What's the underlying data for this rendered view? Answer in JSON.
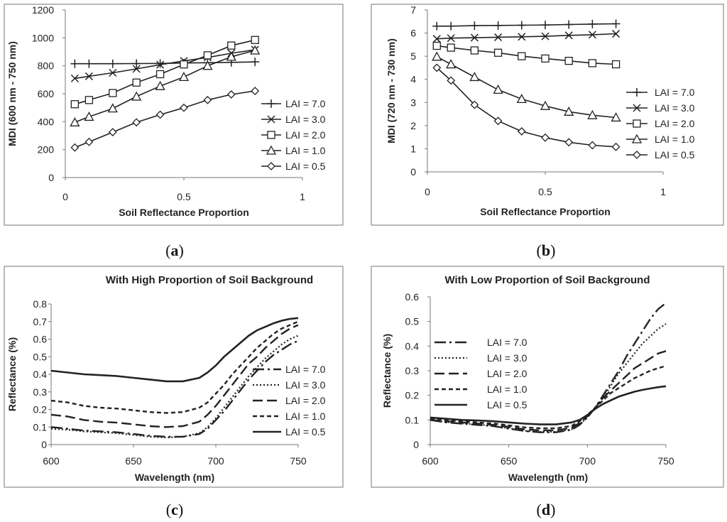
{
  "chart_data": [
    {
      "id": "a",
      "type": "line",
      "caption_letter": "a",
      "xlabel": "Soil Reflectance Proportion",
      "ylabel": "MDI (600 nm - 750 nm)",
      "xlim": [
        0,
        1
      ],
      "ylim": [
        0,
        1200
      ],
      "xticks": [
        0,
        0.5,
        1
      ],
      "xticklabels": [
        "0",
        "0.5",
        "1"
      ],
      "yticks": [
        0,
        200,
        400,
        600,
        800,
        1000,
        1200
      ],
      "legend_position": "right",
      "x": [
        0.04,
        0.1,
        0.2,
        0.3,
        0.4,
        0.5,
        0.6,
        0.7,
        0.8
      ],
      "series": [
        {
          "name": "LAI = 7.0",
          "marker": "plus",
          "values": [
            815,
            815,
            815,
            816,
            817,
            820,
            822,
            825,
            828
          ]
        },
        {
          "name": "LAI = 3.0",
          "marker": "x",
          "values": [
            710,
            725,
            750,
            778,
            808,
            835,
            860,
            890,
            915
          ]
        },
        {
          "name": "LAI = 2.0",
          "marker": "square",
          "values": [
            525,
            555,
            605,
            680,
            740,
            810,
            875,
            945,
            985
          ]
        },
        {
          "name": "LAI = 1.0",
          "marker": "triangle",
          "values": [
            395,
            435,
            495,
            580,
            655,
            720,
            800,
            865,
            910
          ]
        },
        {
          "name": "LAI = 0.5",
          "marker": "diamond",
          "values": [
            215,
            255,
            325,
            395,
            450,
            500,
            555,
            595,
            620
          ]
        }
      ]
    },
    {
      "id": "b",
      "type": "line",
      "caption_letter": "b",
      "xlabel": "Soil Reflectance Proportion",
      "ylabel": "MDI (720 nm - 730 nm)",
      "xlim": [
        0,
        1
      ],
      "ylim": [
        0,
        7
      ],
      "xticks": [
        0,
        0.5,
        1
      ],
      "xticklabels": [
        "0",
        "0.5",
        "1"
      ],
      "yticks": [
        0,
        1,
        2,
        3,
        4,
        5,
        6,
        7
      ],
      "legend_position": "right",
      "x": [
        0.04,
        0.1,
        0.2,
        0.3,
        0.4,
        0.5,
        0.6,
        0.7,
        0.8
      ],
      "series": [
        {
          "name": "LAI = 7.0",
          "marker": "plus",
          "values": [
            6.3,
            6.3,
            6.32,
            6.33,
            6.34,
            6.35,
            6.37,
            6.39,
            6.4
          ]
        },
        {
          "name": "LAI = 3.0",
          "marker": "x",
          "values": [
            5.75,
            5.78,
            5.8,
            5.82,
            5.84,
            5.86,
            5.9,
            5.93,
            5.97
          ]
        },
        {
          "name": "LAI = 2.0",
          "marker": "square",
          "values": [
            5.45,
            5.37,
            5.25,
            5.15,
            5.0,
            4.9,
            4.8,
            4.7,
            4.65
          ]
        },
        {
          "name": "LAI = 1.0",
          "marker": "triangle",
          "values": [
            4.98,
            4.65,
            4.1,
            3.55,
            3.15,
            2.85,
            2.6,
            2.45,
            2.35
          ]
        },
        {
          "name": "LAI = 0.5",
          "marker": "diamond",
          "values": [
            4.5,
            3.95,
            2.9,
            2.2,
            1.75,
            1.48,
            1.28,
            1.15,
            1.08
          ]
        }
      ]
    },
    {
      "id": "c",
      "type": "line",
      "caption_letter": "c",
      "title": "With High Proportion of Soil Background",
      "xlabel": "Wavelength (nm)",
      "ylabel": "Reflectance (%)",
      "xlim": [
        600,
        750
      ],
      "ylim": [
        0,
        0.8
      ],
      "xticks": [
        600,
        650,
        700,
        750
      ],
      "yticks": [
        0,
        0.1,
        0.2,
        0.3,
        0.4,
        0.5,
        0.6,
        0.7,
        0.8
      ],
      "legend_position": "right",
      "x": [
        600,
        610,
        620,
        630,
        640,
        650,
        660,
        670,
        680,
        690,
        695,
        700,
        705,
        710,
        715,
        720,
        725,
        730,
        735,
        740,
        745,
        750
      ],
      "series": [
        {
          "name": "LAI = 7.0",
          "dash": "long-dash-dot",
          "values": [
            0.1,
            0.09,
            0.08,
            0.075,
            0.07,
            0.06,
            0.05,
            0.045,
            0.045,
            0.06,
            0.09,
            0.14,
            0.19,
            0.25,
            0.31,
            0.37,
            0.42,
            0.47,
            0.51,
            0.54,
            0.57,
            0.59
          ]
        },
        {
          "name": "LAI = 3.0",
          "dash": "dotted",
          "values": [
            0.09,
            0.085,
            0.075,
            0.07,
            0.065,
            0.055,
            0.045,
            0.04,
            0.045,
            0.065,
            0.1,
            0.15,
            0.21,
            0.27,
            0.33,
            0.39,
            0.44,
            0.49,
            0.53,
            0.57,
            0.6,
            0.62
          ]
        },
        {
          "name": "LAI = 2.0",
          "dash": "long-dash",
          "values": [
            0.17,
            0.16,
            0.14,
            0.13,
            0.125,
            0.115,
            0.105,
            0.1,
            0.105,
            0.13,
            0.17,
            0.22,
            0.28,
            0.34,
            0.4,
            0.46,
            0.5,
            0.55,
            0.59,
            0.63,
            0.66,
            0.68
          ]
        },
        {
          "name": "LAI = 1.0",
          "dash": "short-dash",
          "values": [
            0.25,
            0.24,
            0.22,
            0.21,
            0.205,
            0.195,
            0.185,
            0.18,
            0.185,
            0.21,
            0.24,
            0.29,
            0.34,
            0.4,
            0.45,
            0.5,
            0.55,
            0.59,
            0.63,
            0.66,
            0.68,
            0.7
          ]
        },
        {
          "name": "LAI = 0.5",
          "dash": "solid",
          "values": [
            0.42,
            0.41,
            0.4,
            0.395,
            0.39,
            0.38,
            0.37,
            0.36,
            0.36,
            0.38,
            0.41,
            0.45,
            0.5,
            0.54,
            0.58,
            0.62,
            0.65,
            0.67,
            0.69,
            0.705,
            0.715,
            0.72
          ]
        }
      ]
    },
    {
      "id": "d",
      "type": "line",
      "caption_letter": "d",
      "title": "With Low Proportion of Soil Background",
      "xlabel": "Wavelength (nm)",
      "ylabel": "Reflectance (%)",
      "xlim": [
        600,
        750
      ],
      "ylim": [
        0,
        0.6
      ],
      "xticks": [
        600,
        650,
        700,
        750
      ],
      "yticks": [
        0,
        0.1,
        0.2,
        0.3,
        0.4,
        0.5,
        0.6
      ],
      "legend_position": "upper-left",
      "x": [
        600,
        610,
        620,
        630,
        640,
        650,
        660,
        670,
        680,
        690,
        695,
        700,
        705,
        710,
        715,
        720,
        725,
        730,
        735,
        740,
        745,
        750
      ],
      "series": [
        {
          "name": "LAI = 7.0",
          "dash": "long-dash-dot",
          "values": [
            0.1,
            0.09,
            0.085,
            0.08,
            0.075,
            0.065,
            0.055,
            0.05,
            0.05,
            0.06,
            0.08,
            0.11,
            0.15,
            0.2,
            0.25,
            0.3,
            0.36,
            0.41,
            0.46,
            0.51,
            0.55,
            0.575
          ]
        },
        {
          "name": "LAI = 3.0",
          "dash": "dotted",
          "values": [
            0.1,
            0.092,
            0.086,
            0.082,
            0.076,
            0.066,
            0.056,
            0.052,
            0.052,
            0.062,
            0.082,
            0.11,
            0.15,
            0.19,
            0.24,
            0.29,
            0.33,
            0.37,
            0.41,
            0.44,
            0.47,
            0.49
          ]
        },
        {
          "name": "LAI = 2.0",
          "dash": "long-dash",
          "values": [
            0.1,
            0.095,
            0.09,
            0.085,
            0.08,
            0.072,
            0.062,
            0.058,
            0.058,
            0.068,
            0.088,
            0.115,
            0.15,
            0.19,
            0.22,
            0.25,
            0.28,
            0.31,
            0.33,
            0.35,
            0.37,
            0.38
          ]
        },
        {
          "name": "LAI = 1.0",
          "dash": "short-dash",
          "values": [
            0.105,
            0.1,
            0.095,
            0.09,
            0.086,
            0.078,
            0.07,
            0.066,
            0.066,
            0.076,
            0.095,
            0.12,
            0.15,
            0.18,
            0.21,
            0.23,
            0.25,
            0.27,
            0.285,
            0.3,
            0.31,
            0.32
          ]
        },
        {
          "name": "LAI = 0.5",
          "dash": "solid",
          "values": [
            0.11,
            0.105,
            0.1,
            0.098,
            0.095,
            0.09,
            0.085,
            0.082,
            0.082,
            0.09,
            0.1,
            0.12,
            0.145,
            0.165,
            0.18,
            0.195,
            0.205,
            0.215,
            0.222,
            0.228,
            0.233,
            0.237
          ]
        }
      ]
    }
  ]
}
